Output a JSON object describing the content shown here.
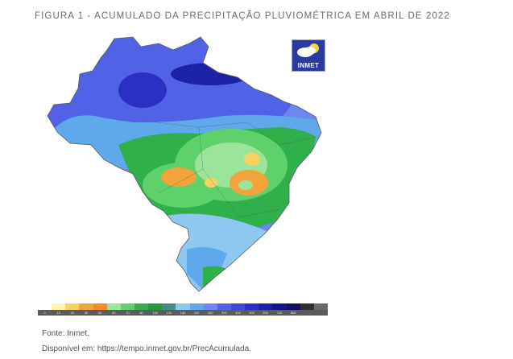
{
  "figure": {
    "title": "FIGURA 1 - ACUMULADO DA PRECIPITAÇÃO PLUVIOMÉTRICA EM ABRIL DE 2022"
  },
  "logo": {
    "text": "INMET"
  },
  "legend": {
    "colors": [
      "#ffffff",
      "#fff4a8",
      "#f8d162",
      "#f2a33a",
      "#f28a2a",
      "#9be59b",
      "#5fd16b",
      "#2fb04a",
      "#1e9a3a",
      "#3e8f7c",
      "#8ec8f0",
      "#5fa8ec",
      "#6e86f0",
      "#5262e6",
      "#4048d6",
      "#2b30c4",
      "#1c22a8",
      "#14168a",
      "#101060",
      "#303030",
      "#6a6a6a"
    ],
    "ticks": [
      "0",
      "10",
      "20",
      "30",
      "40",
      "50",
      "70",
      "80",
      "100",
      "120",
      "150",
      "200",
      "250",
      "300",
      "400",
      "500",
      "600",
      "700",
      "800",
      "",
      ""
    ]
  },
  "caption": {
    "source": "Fonte: Inmet.",
    "available": "Disponível em: https://tempo.inmet.gov.br/PrecAcumulada."
  }
}
